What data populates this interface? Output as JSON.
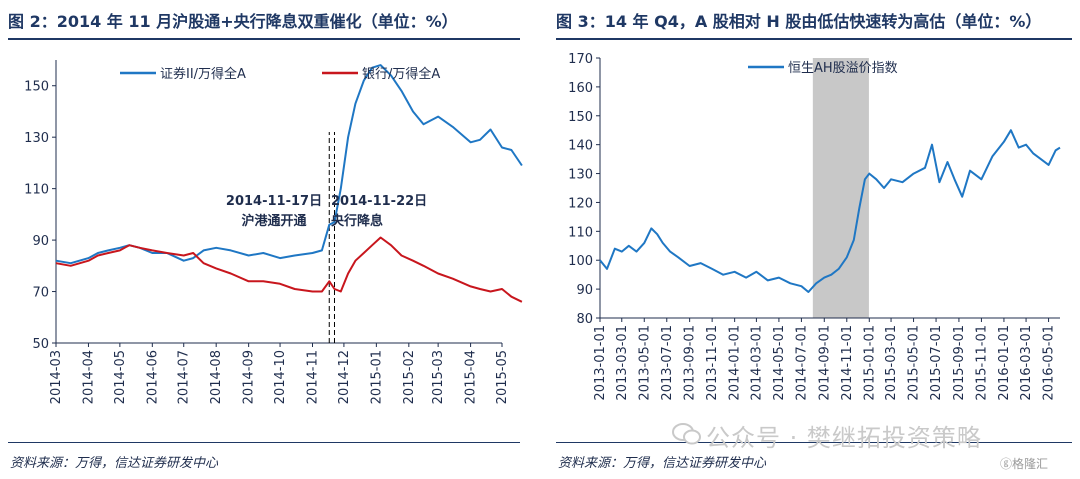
{
  "charts": [
    {
      "title": "图 2：2014 年 11 月沪股通+央行降息双重催化（单位：%）",
      "source": "资料来源：万得，信达证券研发中心",
      "annotations": [
        "2014-11-17日",
        "沪港通开通",
        "2014-11-22日",
        "央行降息"
      ],
      "chart_data": {
        "type": "line",
        "x_ticks": [
          "2014-03",
          "2014-04",
          "2014-05",
          "2014-06",
          "2014-07",
          "2014-08",
          "2014-09",
          "2014-10",
          "2014-11",
          "2014-12",
          "2015-01",
          "2015-02",
          "2015-03",
          "2015-04",
          "2015-05"
        ],
        "y_ticks": [
          50,
          70,
          90,
          110,
          130,
          150
        ],
        "ylim": [
          50,
          160
        ],
        "xlim": [
          "2014-03",
          "2015-05"
        ],
        "grid": false,
        "legend": "top",
        "annotation_dates": [
          "2014-11-17",
          "2014-11-22"
        ],
        "series": [
          {
            "name": "证券II/万得全A",
            "color": "#1f77c4",
            "points": [
              [
                "2014-03-01",
                82
              ],
              [
                "2014-03-15",
                81
              ],
              [
                "2014-04-01",
                83
              ],
              [
                "2014-04-10",
                85
              ],
              [
                "2014-04-20",
                86
              ],
              [
                "2014-05-01",
                87
              ],
              [
                "2014-05-10",
                88
              ],
              [
                "2014-05-20",
                87
              ],
              [
                "2014-06-01",
                85
              ],
              [
                "2014-06-15",
                85
              ],
              [
                "2014-07-01",
                82
              ],
              [
                "2014-07-10",
                83
              ],
              [
                "2014-07-20",
                86
              ],
              [
                "2014-08-01",
                87
              ],
              [
                "2014-08-15",
                86
              ],
              [
                "2014-09-01",
                84
              ],
              [
                "2014-09-15",
                85
              ],
              [
                "2014-10-01",
                83
              ],
              [
                "2014-10-15",
                84
              ],
              [
                "2014-11-01",
                85
              ],
              [
                "2014-11-10",
                86
              ],
              [
                "2014-11-17",
                96
              ],
              [
                "2014-11-22",
                97
              ],
              [
                "2014-11-28",
                110
              ],
              [
                "2014-12-05",
                130
              ],
              [
                "2014-12-12",
                143
              ],
              [
                "2014-12-20",
                152
              ],
              [
                "2014-12-28",
                157
              ],
              [
                "2015-01-05",
                158
              ],
              [
                "2015-01-15",
                154
              ],
              [
                "2015-01-25",
                148
              ],
              [
                "2015-02-05",
                140
              ],
              [
                "2015-02-15",
                135
              ],
              [
                "2015-03-01",
                138
              ],
              [
                "2015-03-15",
                134
              ],
              [
                "2015-04-01",
                128
              ],
              [
                "2015-04-10",
                129
              ],
              [
                "2015-04-20",
                133
              ],
              [
                "2015-05-01",
                126
              ],
              [
                "2015-05-10",
                125
              ],
              [
                "2015-05-20",
                119
              ]
            ]
          },
          {
            "name": "银行/万得全A",
            "color": "#c8161d",
            "points": [
              [
                "2014-03-01",
                81
              ],
              [
                "2014-03-15",
                80
              ],
              [
                "2014-04-01",
                82
              ],
              [
                "2014-04-10",
                84
              ],
              [
                "2014-04-20",
                85
              ],
              [
                "2014-05-01",
                86
              ],
              [
                "2014-05-10",
                88
              ],
              [
                "2014-05-20",
                87
              ],
              [
                "2014-06-01",
                86
              ],
              [
                "2014-06-15",
                85
              ],
              [
                "2014-07-01",
                84
              ],
              [
                "2014-07-10",
                85
              ],
              [
                "2014-07-20",
                81
              ],
              [
                "2014-08-01",
                79
              ],
              [
                "2014-08-15",
                77
              ],
              [
                "2014-09-01",
                74
              ],
              [
                "2014-09-15",
                74
              ],
              [
                "2014-10-01",
                73
              ],
              [
                "2014-10-15",
                71
              ],
              [
                "2014-11-01",
                70
              ],
              [
                "2014-11-10",
                70
              ],
              [
                "2014-11-17",
                74
              ],
              [
                "2014-11-22",
                71
              ],
              [
                "2014-11-28",
                70
              ],
              [
                "2014-12-05",
                77
              ],
              [
                "2014-12-12",
                82
              ],
              [
                "2014-12-20",
                85
              ],
              [
                "2014-12-28",
                88
              ],
              [
                "2015-01-05",
                91
              ],
              [
                "2015-01-15",
                88
              ],
              [
                "2015-01-25",
                84
              ],
              [
                "2015-02-05",
                82
              ],
              [
                "2015-02-15",
                80
              ],
              [
                "2015-03-01",
                77
              ],
              [
                "2015-03-15",
                75
              ],
              [
                "2015-04-01",
                72
              ],
              [
                "2015-04-10",
                71
              ],
              [
                "2015-04-20",
                70
              ],
              [
                "2015-05-01",
                71
              ],
              [
                "2015-05-10",
                68
              ],
              [
                "2015-05-20",
                66
              ]
            ]
          }
        ]
      }
    },
    {
      "title": "图 3：14 年 Q4，A 股相对 H 股由低估快速转为高估（单位：%）",
      "source": "资料来源：万得，信达证券研发中心",
      "chart_data": {
        "type": "line",
        "x_ticks": [
          "2013-01-01",
          "2013-03-01",
          "2013-05-01",
          "2013-07-01",
          "2013-09-01",
          "2013-11-01",
          "2014-01-01",
          "2014-03-01",
          "2014-05-01",
          "2014-07-01",
          "2014-09-01",
          "2014-11-01",
          "2015-01-01",
          "2015-03-01",
          "2015-05-01",
          "2015-07-01",
          "2015-09-01",
          "2015-11-01",
          "2016-01-01",
          "2016-03-01",
          "2016-05-01"
        ],
        "y_ticks": [
          80,
          90,
          100,
          110,
          120,
          130,
          140,
          150,
          160,
          170
        ],
        "ylim": [
          80,
          170
        ],
        "xlim": [
          "2013-01-01",
          "2016-06-01"
        ],
        "grid": false,
        "legend": "top",
        "shaded_period": [
          "2014-08-01",
          "2014-12-31"
        ],
        "shade_color": "#c8c8c8",
        "series": [
          {
            "name": "恒生AH股溢价指数",
            "color": "#1f77c4",
            "points": [
              [
                "2013-01-01",
                100
              ],
              [
                "2013-01-20",
                97
              ],
              [
                "2013-02-10",
                104
              ],
              [
                "2013-03-01",
                103
              ],
              [
                "2013-03-20",
                105
              ],
              [
                "2013-04-10",
                103
              ],
              [
                "2013-05-01",
                106
              ],
              [
                "2013-05-20",
                111
              ],
              [
                "2013-06-05",
                109
              ],
              [
                "2013-06-20",
                106
              ],
              [
                "2013-07-10",
                103
              ],
              [
                "2013-08-01",
                101
              ],
              [
                "2013-09-01",
                98
              ],
              [
                "2013-10-01",
                99
              ],
              [
                "2013-11-01",
                97
              ],
              [
                "2013-12-01",
                95
              ],
              [
                "2014-01-01",
                96
              ],
              [
                "2014-02-01",
                94
              ],
              [
                "2014-03-01",
                96
              ],
              [
                "2014-04-01",
                93
              ],
              [
                "2014-05-01",
                94
              ],
              [
                "2014-06-01",
                92
              ],
              [
                "2014-07-01",
                91
              ],
              [
                "2014-07-20",
                89
              ],
              [
                "2014-08-10",
                92
              ],
              [
                "2014-09-01",
                94
              ],
              [
                "2014-09-20",
                95
              ],
              [
                "2014-10-10",
                97
              ],
              [
                "2014-11-01",
                101
              ],
              [
                "2014-11-20",
                107
              ],
              [
                "2014-12-05",
                118
              ],
              [
                "2014-12-20",
                128
              ],
              [
                "2015-01-01",
                130
              ],
              [
                "2015-01-20",
                128
              ],
              [
                "2015-02-10",
                125
              ],
              [
                "2015-03-01",
                128
              ],
              [
                "2015-04-01",
                127
              ],
              [
                "2015-05-01",
                130
              ],
              [
                "2015-06-01",
                132
              ],
              [
                "2015-06-20",
                140
              ],
              [
                "2015-07-10",
                127
              ],
              [
                "2015-08-01",
                134
              ],
              [
                "2015-08-20",
                128
              ],
              [
                "2015-09-10",
                122
              ],
              [
                "2015-10-01",
                131
              ],
              [
                "2015-11-01",
                128
              ],
              [
                "2015-12-01",
                136
              ],
              [
                "2016-01-01",
                141
              ],
              [
                "2016-01-20",
                145
              ],
              [
                "2016-02-10",
                139
              ],
              [
                "2016-03-01",
                140
              ],
              [
                "2016-03-20",
                137
              ],
              [
                "2016-04-10",
                135
              ],
              [
                "2016-05-01",
                133
              ],
              [
                "2016-05-20",
                138
              ],
              [
                "2016-06-01",
                139
              ]
            ]
          }
        ]
      }
    }
  ],
  "watermark": "公众号 · 樊继拓投资策略",
  "logo_text": "格隆汇"
}
